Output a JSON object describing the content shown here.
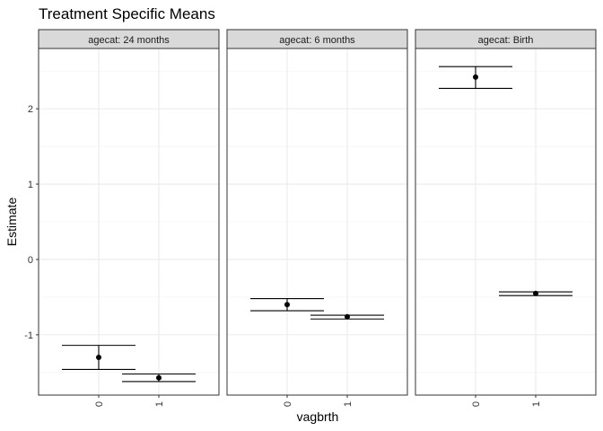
{
  "chart_data": {
    "type": "scatter",
    "title": "Treatment Specific Means",
    "xlabel": "vagbrth",
    "ylabel": "Estimate",
    "facet_prefix": "agecat: ",
    "categories": [
      "0",
      "1"
    ],
    "ylim": [
      -1.8,
      2.8
    ],
    "yticks": [
      -1,
      0,
      1,
      2
    ],
    "grid": true,
    "facets": [
      {
        "label": "agecat: 24 months",
        "points": [
          {
            "x": "0",
            "estimate": -1.3,
            "lower": -1.46,
            "upper": -1.14
          },
          {
            "x": "1",
            "estimate": -1.57,
            "lower": -1.62,
            "upper": -1.52
          }
        ]
      },
      {
        "label": "agecat: 6 months",
        "points": [
          {
            "x": "0",
            "estimate": -0.6,
            "lower": -0.68,
            "upper": -0.52
          },
          {
            "x": "1",
            "estimate": -0.76,
            "lower": -0.79,
            "upper": -0.74
          }
        ]
      },
      {
        "label": "agecat: Birth",
        "points": [
          {
            "x": "0",
            "estimate": 2.42,
            "lower": 2.27,
            "upper": 2.56
          },
          {
            "x": "1",
            "estimate": -0.45,
            "lower": -0.48,
            "upper": -0.43
          }
        ]
      }
    ]
  }
}
